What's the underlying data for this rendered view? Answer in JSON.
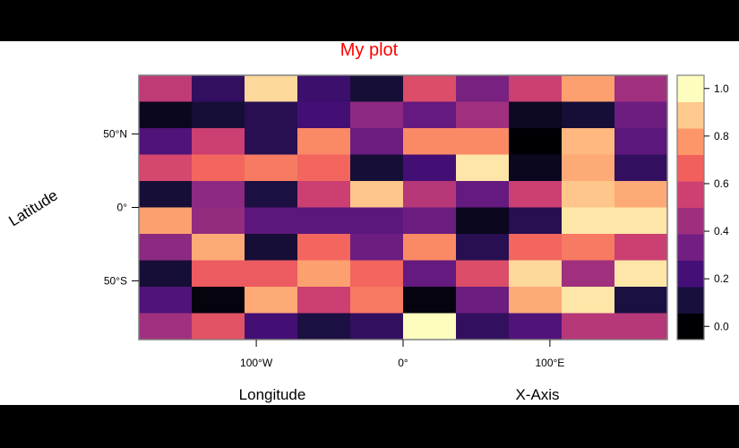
{
  "chart_data": {
    "type": "heatmap",
    "title": "My plot",
    "title_color": "#ff0000",
    "xlabel": "Longitude",
    "xlabel2": "X-Axis",
    "ylabel": "Latitude",
    "x_ticks": [
      {
        "label": "100°W",
        "value": -100
      },
      {
        "label": "0°",
        "value": 0
      },
      {
        "label": "100°E",
        "value": 100
      }
    ],
    "y_ticks": [
      {
        "label": "50°N",
        "value": 50
      },
      {
        "label": "0°",
        "value": 0
      },
      {
        "label": "50°S",
        "value": -50
      }
    ],
    "x_range": [
      -180,
      180
    ],
    "y_range": [
      -90,
      90
    ],
    "colorbar": {
      "ticks": [
        "0.0",
        "0.2",
        "0.4",
        "0.6",
        "0.8",
        "1.0"
      ],
      "tick_values": [
        0,
        0.2,
        0.4,
        0.6,
        0.8,
        1.0
      ],
      "range": [
        0,
        1
      ],
      "stops": [
        "#000004",
        "#180f3d",
        "#440f76",
        "#721f81",
        "#9e2f7f",
        "#cd4071",
        "#f1605d",
        "#fd9668",
        "#feca8d",
        "#fcfdbf"
      ]
    },
    "rows": 10,
    "cols": 10,
    "values": [
      [
        0.52,
        0.18,
        0.92,
        0.2,
        0.1,
        0.6,
        0.35,
        0.55,
        0.8,
        0.45
      ],
      [
        0.05,
        0.1,
        0.15,
        0.22,
        0.4,
        0.3,
        0.45,
        0.06,
        0.1,
        0.32
      ],
      [
        0.25,
        0.55,
        0.15,
        0.75,
        0.32,
        0.75,
        0.75,
        0.0,
        0.85,
        0.28
      ],
      [
        0.58,
        0.68,
        0.72,
        0.68,
        0.1,
        0.22,
        0.95,
        0.05,
        0.82,
        0.18
      ],
      [
        0.1,
        0.4,
        0.12,
        0.55,
        0.88,
        0.5,
        0.3,
        0.55,
        0.88,
        0.82
      ],
      [
        0.8,
        0.42,
        0.28,
        0.28,
        0.28,
        0.32,
        0.05,
        0.15,
        0.95,
        0.95
      ],
      [
        0.4,
        0.82,
        0.1,
        0.68,
        0.32,
        0.75,
        0.15,
        0.68,
        0.72,
        0.55
      ],
      [
        0.1,
        0.65,
        0.65,
        0.8,
        0.68,
        0.3,
        0.6,
        0.92,
        0.45,
        0.95
      ],
      [
        0.25,
        0.02,
        0.82,
        0.55,
        0.72,
        0.02,
        0.32,
        0.82,
        0.95,
        0.12
      ],
      [
        0.45,
        0.62,
        0.22,
        0.12,
        0.18,
        1.0,
        0.18,
        0.25,
        0.5,
        0.5
      ]
    ]
  }
}
